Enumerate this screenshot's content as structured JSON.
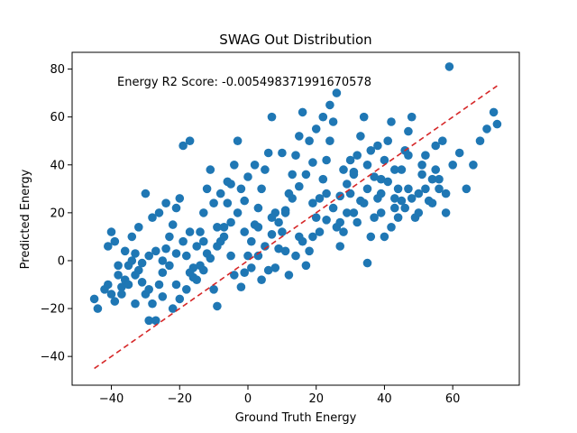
{
  "chart_data": {
    "type": "scatter",
    "title": "SWAG Out Distribution",
    "xlabel": "Ground Truth Energy",
    "ylabel": "Predicted Energy",
    "xlim": [
      -51.5,
      79.5
    ],
    "ylim": [
      -52,
      87
    ],
    "xticks": [
      -40,
      -20,
      0,
      20,
      40,
      60
    ],
    "yticks": [
      -40,
      -20,
      0,
      20,
      40,
      60,
      80
    ],
    "grid": false,
    "annotation": "Energy R2 Score: -0.005498371991670578",
    "marker_color": "#1f77b4",
    "reference_line": {
      "x": [
        -45,
        73
      ],
      "y": [
        -45,
        73
      ],
      "color": "#d62728",
      "style": "dashed"
    },
    "series": [
      {
        "points": [
          [
            -45,
            -16
          ],
          [
            -44,
            -20
          ],
          [
            -42,
            -12
          ],
          [
            -40,
            -14
          ],
          [
            -39,
            -17
          ],
          [
            -41,
            6
          ],
          [
            -40,
            12
          ],
          [
            -39,
            8
          ],
          [
            -38,
            -6
          ],
          [
            -37,
            -11
          ],
          [
            -36,
            -8
          ],
          [
            -35,
            -2
          ],
          [
            -34,
            0
          ],
          [
            -33,
            3
          ],
          [
            -32,
            -4
          ],
          [
            -31,
            -9
          ],
          [
            -30,
            -14
          ],
          [
            -30,
            28
          ],
          [
            -29,
            -25
          ],
          [
            -28,
            -18
          ],
          [
            -27,
            -25
          ],
          [
            -26,
            -10
          ],
          [
            -25,
            0
          ],
          [
            -24,
            5
          ],
          [
            -23,
            10
          ],
          [
            -22,
            15
          ],
          [
            -21,
            22
          ],
          [
            -20,
            26
          ],
          [
            -19,
            48
          ],
          [
            -18,
            2
          ],
          [
            -17,
            50
          ],
          [
            -16,
            -3
          ],
          [
            -15,
            6
          ],
          [
            -14,
            12
          ],
          [
            -13,
            20
          ],
          [
            -12,
            30
          ],
          [
            -11,
            38
          ],
          [
            -10,
            -12
          ],
          [
            -9,
            -19
          ],
          [
            -8,
            8
          ],
          [
            -7,
            14
          ],
          [
            -6,
            24
          ],
          [
            -5,
            32
          ],
          [
            -4,
            40
          ],
          [
            -3,
            50
          ],
          [
            -2,
            -11
          ],
          [
            -1,
            -5
          ],
          [
            0,
            2
          ],
          [
            1,
            8
          ],
          [
            2,
            15
          ],
          [
            3,
            22
          ],
          [
            4,
            30
          ],
          [
            5,
            38
          ],
          [
            6,
            45
          ],
          [
            7,
            60
          ],
          [
            8,
            -3
          ],
          [
            9,
            5
          ],
          [
            10,
            12
          ],
          [
            11,
            20
          ],
          [
            12,
            28
          ],
          [
            13,
            36
          ],
          [
            14,
            44
          ],
          [
            15,
            52
          ],
          [
            16,
            62
          ],
          [
            17,
            -2
          ],
          [
            18,
            4
          ],
          [
            19,
            10
          ],
          [
            20,
            18
          ],
          [
            21,
            26
          ],
          [
            22,
            34
          ],
          [
            23,
            42
          ],
          [
            24,
            50
          ],
          [
            25,
            58
          ],
          [
            26,
            70
          ],
          [
            27,
            6
          ],
          [
            28,
            12
          ],
          [
            29,
            20
          ],
          [
            30,
            28
          ],
          [
            31,
            36
          ],
          [
            32,
            44
          ],
          [
            33,
            52
          ],
          [
            34,
            60
          ],
          [
            35,
            -1
          ],
          [
            36,
            10
          ],
          [
            37,
            18
          ],
          [
            38,
            26
          ],
          [
            39,
            34
          ],
          [
            40,
            42
          ],
          [
            41,
            50
          ],
          [
            42,
            58
          ],
          [
            43,
            22
          ],
          [
            44,
            30
          ],
          [
            45,
            38
          ],
          [
            46,
            46
          ],
          [
            47,
            54
          ],
          [
            48,
            60
          ],
          [
            49,
            18
          ],
          [
            50,
            28
          ],
          [
            51,
            36
          ],
          [
            52,
            44
          ],
          [
            53,
            25
          ],
          [
            54,
            34
          ],
          [
            55,
            38
          ],
          [
            56,
            30
          ],
          [
            57,
            50
          ],
          [
            58,
            20
          ],
          [
            59,
            81
          ],
          [
            60,
            40
          ],
          [
            62,
            45
          ],
          [
            64,
            30
          ],
          [
            66,
            40
          ],
          [
            68,
            50
          ],
          [
            70,
            55
          ],
          [
            72,
            62
          ],
          [
            73,
            57
          ],
          [
            -35,
            -10
          ],
          [
            -33,
            -6
          ],
          [
            -31,
            -1
          ],
          [
            -29,
            2
          ],
          [
            -27,
            4
          ],
          [
            -25,
            -5
          ],
          [
            -23,
            -2
          ],
          [
            -21,
            3
          ],
          [
            -19,
            8
          ],
          [
            -17,
            12
          ],
          [
            -15,
            -8
          ],
          [
            -13,
            -4
          ],
          [
            -11,
            1
          ],
          [
            -9,
            6
          ],
          [
            -7,
            10
          ],
          [
            -5,
            16
          ],
          [
            -3,
            20
          ],
          [
            -1,
            25
          ],
          [
            1,
            -3
          ],
          [
            3,
            2
          ],
          [
            5,
            6
          ],
          [
            7,
            11
          ],
          [
            9,
            16
          ],
          [
            11,
            21
          ],
          [
            13,
            26
          ],
          [
            15,
            31
          ],
          [
            17,
            36
          ],
          [
            19,
            41
          ],
          [
            21,
            12
          ],
          [
            23,
            17
          ],
          [
            25,
            22
          ],
          [
            27,
            27
          ],
          [
            29,
            32
          ],
          [
            31,
            37
          ],
          [
            33,
            25
          ],
          [
            35,
            30
          ],
          [
            37,
            35
          ],
          [
            39,
            28
          ],
          [
            41,
            33
          ],
          [
            43,
            38
          ],
          [
            45,
            25
          ],
          [
            47,
            30
          ],
          [
            -38,
            -2
          ],
          [
            -36,
            4
          ],
          [
            -34,
            10
          ],
          [
            -32,
            14
          ],
          [
            -28,
            18
          ],
          [
            -26,
            20
          ],
          [
            -24,
            24
          ],
          [
            -22,
            -20
          ],
          [
            -20,
            -16
          ],
          [
            -18,
            -12
          ],
          [
            -16,
            -7
          ],
          [
            -14,
            -2
          ],
          [
            -12,
            3
          ],
          [
            -10,
            24
          ],
          [
            -8,
            28
          ],
          [
            -6,
            33
          ],
          [
            -4,
            -6
          ],
          [
            -2,
            30
          ],
          [
            0,
            35
          ],
          [
            2,
            40
          ],
          [
            4,
            -8
          ],
          [
            6,
            -4
          ],
          [
            8,
            20
          ],
          [
            10,
            45
          ],
          [
            12,
            -6
          ],
          [
            14,
            2
          ],
          [
            16,
            8
          ],
          [
            18,
            50
          ],
          [
            20,
            55
          ],
          [
            22,
            60
          ],
          [
            24,
            65
          ],
          [
            26,
            14
          ],
          [
            28,
            38
          ],
          [
            30,
            42
          ],
          [
            32,
            16
          ],
          [
            34,
            24
          ],
          [
            36,
            46
          ],
          [
            38,
            48
          ],
          [
            40,
            10
          ],
          [
            42,
            14
          ],
          [
            44,
            18
          ],
          [
            46,
            22
          ],
          [
            48,
            26
          ],
          [
            50,
            20
          ],
          [
            52,
            30
          ],
          [
            54,
            24
          ],
          [
            56,
            34
          ],
          [
            58,
            28
          ],
          [
            -41,
            -10
          ],
          [
            -37,
            -14
          ],
          [
            -33,
            -18
          ],
          [
            -29,
            -12
          ],
          [
            -25,
            -15
          ],
          [
            -21,
            -10
          ],
          [
            -17,
            -5
          ],
          [
            -13,
            8
          ],
          [
            -9,
            14
          ],
          [
            -5,
            2
          ],
          [
            -1,
            12
          ],
          [
            3,
            14
          ],
          [
            7,
            18
          ],
          [
            11,
            4
          ],
          [
            15,
            10
          ],
          [
            19,
            24
          ],
          [
            23,
            28
          ],
          [
            27,
            16
          ],
          [
            31,
            20
          ],
          [
            35,
            40
          ],
          [
            39,
            20
          ],
          [
            43,
            26
          ],
          [
            47,
            44
          ],
          [
            51,
            40
          ],
          [
            55,
            48
          ]
        ]
      }
    ]
  }
}
